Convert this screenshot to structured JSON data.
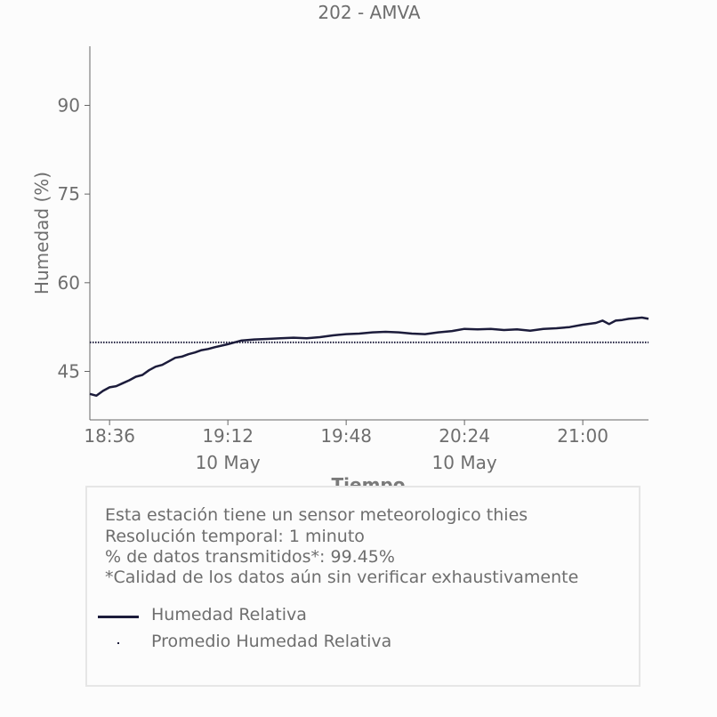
{
  "chart_data": {
    "type": "line",
    "title": "202 - AMVA",
    "xlabel": "Tiempo",
    "ylabel": "Humedad (%)",
    "x_range": [
      "18:30",
      "21:20"
    ],
    "ylim": [
      36.8,
      100
    ],
    "y_ticks": [
      45,
      60,
      75,
      90
    ],
    "x_ticks": [
      {
        "time": "18:36",
        "label": "18:36",
        "sublabel": ""
      },
      {
        "time": "19:12",
        "label": "19:12",
        "sublabel": "10 May"
      },
      {
        "time": "19:48",
        "label": "19:48",
        "sublabel": ""
      },
      {
        "time": "20:24",
        "label": "20:24",
        "sublabel": "10 May"
      },
      {
        "time": "21:00",
        "label": "21:00",
        "sublabel": ""
      }
    ],
    "grid": false,
    "series": [
      {
        "name": "Humedad Relativa",
        "color": "#1c1c3b",
        "style": "solid",
        "points": [
          [
            "18:30",
            41.2
          ],
          [
            "18:32",
            40.9
          ],
          [
            "18:34",
            41.7
          ],
          [
            "18:36",
            42.3
          ],
          [
            "18:38",
            42.5
          ],
          [
            "18:40",
            43.0
          ],
          [
            "18:42",
            43.5
          ],
          [
            "18:44",
            44.1
          ],
          [
            "18:46",
            44.4
          ],
          [
            "18:48",
            45.2
          ],
          [
            "18:50",
            45.8
          ],
          [
            "18:52",
            46.1
          ],
          [
            "18:54",
            46.7
          ],
          [
            "18:56",
            47.3
          ],
          [
            "18:58",
            47.5
          ],
          [
            "19:00",
            47.9
          ],
          [
            "19:02",
            48.2
          ],
          [
            "19:04",
            48.6
          ],
          [
            "19:06",
            48.8
          ],
          [
            "19:08",
            49.1
          ],
          [
            "19:12",
            49.6
          ],
          [
            "19:16",
            50.2
          ],
          [
            "19:20",
            50.4
          ],
          [
            "19:24",
            50.5
          ],
          [
            "19:28",
            50.6
          ],
          [
            "19:32",
            50.7
          ],
          [
            "19:36",
            50.6
          ],
          [
            "19:40",
            50.8
          ],
          [
            "19:44",
            51.1
          ],
          [
            "19:48",
            51.3
          ],
          [
            "19:52",
            51.4
          ],
          [
            "19:56",
            51.6
          ],
          [
            "20:00",
            51.7
          ],
          [
            "20:04",
            51.6
          ],
          [
            "20:08",
            51.4
          ],
          [
            "20:12",
            51.3
          ],
          [
            "20:16",
            51.6
          ],
          [
            "20:20",
            51.8
          ],
          [
            "20:24",
            52.2
          ],
          [
            "20:28",
            52.1
          ],
          [
            "20:32",
            52.2
          ],
          [
            "20:36",
            52.0
          ],
          [
            "20:40",
            52.1
          ],
          [
            "20:44",
            51.9
          ],
          [
            "20:48",
            52.2
          ],
          [
            "20:52",
            52.3
          ],
          [
            "20:56",
            52.5
          ],
          [
            "21:00",
            52.9
          ],
          [
            "21:04",
            53.2
          ],
          [
            "21:06",
            53.6
          ],
          [
            "21:08",
            53.0
          ],
          [
            "21:10",
            53.6
          ],
          [
            "21:12",
            53.7
          ],
          [
            "21:14",
            53.9
          ],
          [
            "21:16",
            54.0
          ],
          [
            "21:18",
            54.1
          ],
          [
            "21:20",
            53.9
          ]
        ]
      },
      {
        "name": "Promedio Humedad Relativa",
        "color": "#1c1c3b",
        "style": "dotted",
        "points": [
          [
            "18:30",
            49.9
          ],
          [
            "21:20",
            49.9
          ]
        ]
      }
    ]
  },
  "info": {
    "line1": "Esta estación tiene un sensor meteorologico thies",
    "line2": "Resolución temporal: 1 minuto",
    "line3": "% de datos transmitidos*: 99.45%",
    "line4": "*Calidad de los datos aún sin verificar exhaustivamente"
  },
  "legend": {
    "item1": "Humedad Relativa",
    "item2": "Promedio Humedad Relativa"
  }
}
